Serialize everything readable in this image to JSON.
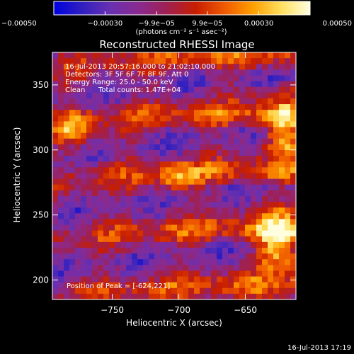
{
  "chart_data": {
    "type": "heatmap",
    "title": "Reconstructed RHESSI Image",
    "xlabel": "Heliocentric X (arcsec)",
    "ylabel": "Heliocentric Y (arcsec)",
    "x_range": [
      -795,
      -612
    ],
    "y_range": [
      185,
      375
    ],
    "x_ticks": [
      {
        "value": -750,
        "label": "−750"
      },
      {
        "value": -700,
        "label": "−700"
      },
      {
        "value": -650,
        "label": "−650"
      }
    ],
    "y_ticks": [
      {
        "value": 200,
        "label": "200"
      },
      {
        "value": 250,
        "label": "250"
      },
      {
        "value": 300,
        "label": "300"
      },
      {
        "value": 350,
        "label": "350"
      }
    ],
    "colorbar": {
      "range": [
        -0.0005,
        0.0005
      ],
      "unit_label": "(photons cm⁻² s⁻¹ asec⁻²)",
      "ticks": [
        {
          "value": -0.0005,
          "label": "−0.00050"
        },
        {
          "value": -0.0003,
          "label": "−0.00030"
        },
        {
          "value": -9.9e-05,
          "label": "−9.9e−05"
        },
        {
          "value": 9.9e-05,
          "label": "9.9e−05"
        },
        {
          "value": 0.0003,
          "label": "0.00030"
        },
        {
          "value": 0.0005,
          "label": "0.00050"
        }
      ],
      "colors": [
        "#0000e0",
        "#3020c0",
        "#6a30b0",
        "#8a2a90",
        "#a02050",
        "#c81e00",
        "#f05a00",
        "#ffa000",
        "#ffe060",
        "#ffffe0"
      ]
    },
    "annotations": {
      "time_range": "16-Jul-2013 20:57:16.000 to 21:02:10.000",
      "detectors": "Detectors: 3F 5F 6F 7F 8F 9F, Att 0",
      "energy_range": "Energy Range: 25.0 - 50.0 keV",
      "method": "Clean",
      "total_counts": "Total counts: 1.47E+04",
      "peak": "Position of Peak = [-624,221]"
    },
    "peak_position": [
      -624,
      221
    ],
    "grid": false
  },
  "footer": {
    "timestamp": "16-Jul-2013 17:19"
  }
}
